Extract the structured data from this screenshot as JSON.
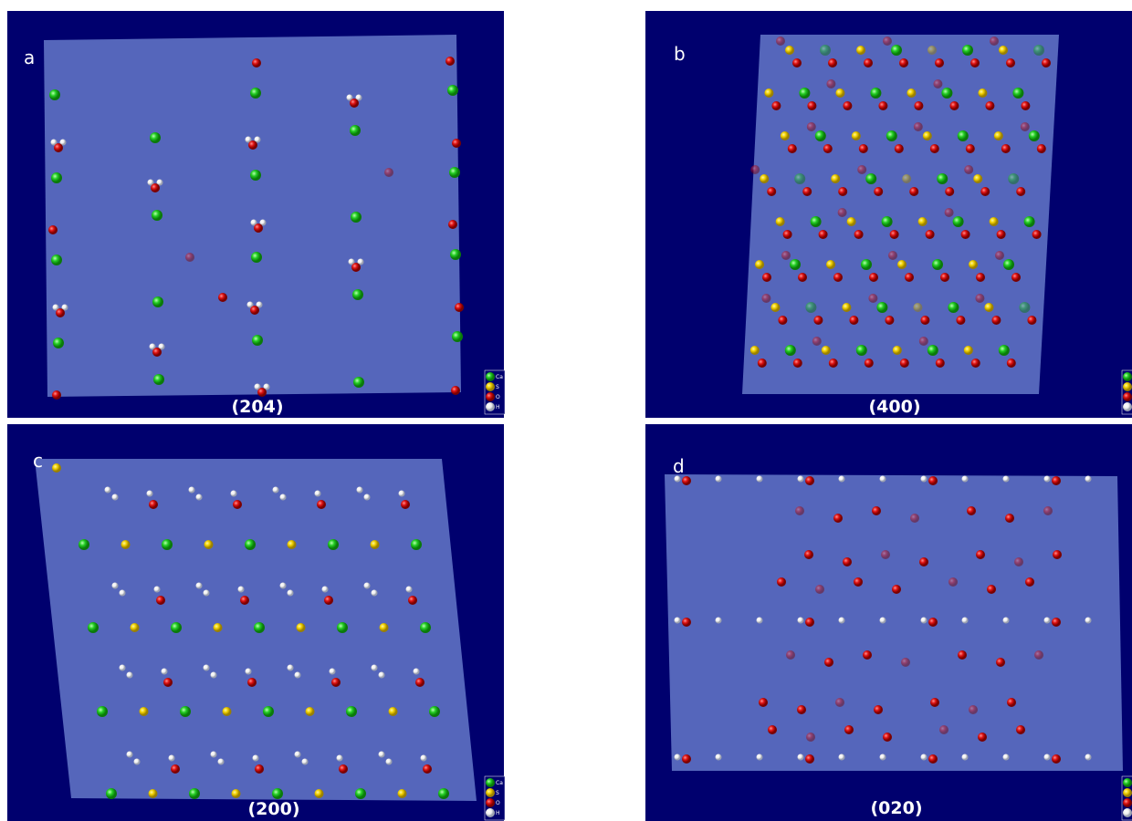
{
  "panels": [
    {
      "label": "a",
      "plane": "(204)",
      "legend": [
        "Ca",
        "S",
        "O",
        "H"
      ]
    },
    {
      "label": "b",
      "plane": "(400)"
    },
    {
      "label": "c",
      "plane": "(200)",
      "legend": [
        "Ca",
        "S",
        "O",
        "H"
      ]
    },
    {
      "label": "d",
      "plane": "(020)"
    }
  ]
}
